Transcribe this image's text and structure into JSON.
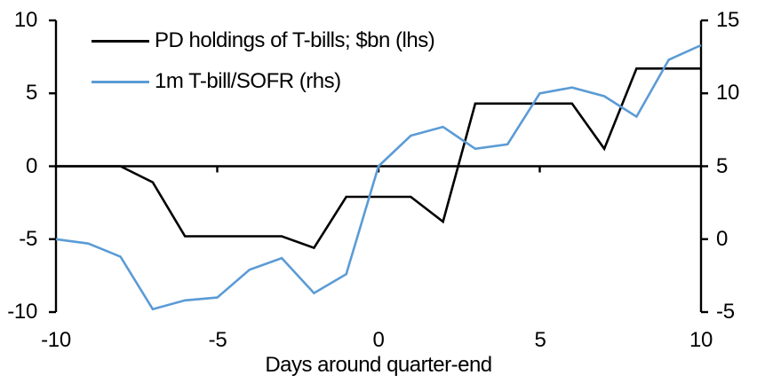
{
  "chart_data": {
    "type": "line",
    "x": [
      -10,
      -9,
      -8,
      -7,
      -6,
      -5,
      -4,
      -3,
      -2,
      -1,
      0,
      1,
      2,
      3,
      4,
      5,
      6,
      7,
      8,
      9,
      10
    ],
    "series": [
      {
        "name": "PD holdings of T-bills; $bn (lhs)",
        "axis": "left",
        "color": "#000000",
        "values": [
          0,
          0,
          0,
          -1.1,
          -4.8,
          -4.8,
          -4.8,
          -4.8,
          -5.6,
          -2.1,
          -2.1,
          -2.1,
          -3.8,
          4.3,
          4.3,
          4.3,
          4.3,
          1.2,
          6.7,
          6.7,
          6.7
        ]
      },
      {
        "name": "1m T-bill/SOFR (rhs)",
        "axis": "right",
        "color": "#5b9bd5",
        "values": [
          0,
          -0.3,
          -1.2,
          -4.8,
          -4.2,
          -4.0,
          -2.1,
          -1.3,
          -3.7,
          -2.4,
          5.0,
          7.1,
          7.7,
          6.2,
          6.5,
          10.0,
          10.4,
          9.8,
          8.4,
          12.3,
          13.3
        ]
      }
    ],
    "xlabel": "Days around quarter-end",
    "left_axis": {
      "ticks": [
        10,
        5,
        0,
        -5,
        -10
      ],
      "range": [
        -10,
        10
      ]
    },
    "right_axis": {
      "ticks": [
        15,
        10,
        5,
        0,
        -5
      ],
      "range": [
        -5,
        15
      ]
    },
    "x_axis": {
      "ticks": [
        -10,
        -5,
        0,
        5,
        10
      ],
      "range": [
        -10,
        10
      ],
      "zero_line": true
    },
    "legend_position": "top-left",
    "grid": false,
    "background": "#ffffff",
    "axis_color": "#000000"
  }
}
